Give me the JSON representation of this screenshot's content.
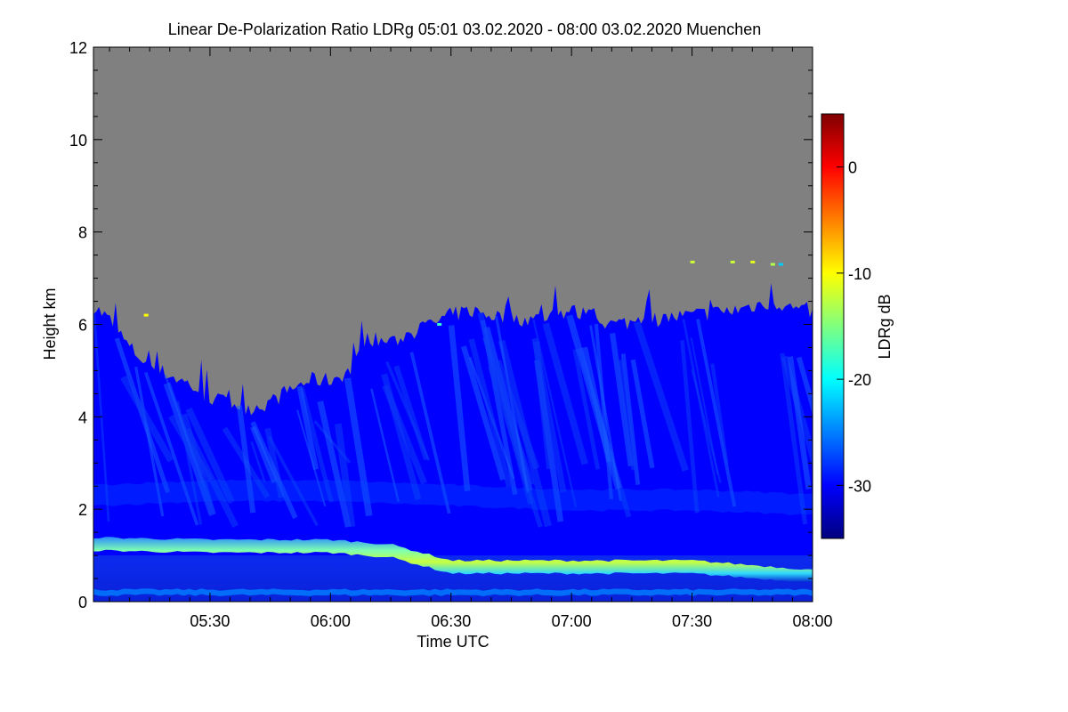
{
  "chart_data": {
    "type": "heatmap",
    "title": "Linear De-Polarization Ratio LDRg   05:01 03.02.2020 - 08:00 03.02.2020 Muenchen",
    "xlabel": "Time UTC",
    "ylabel": "Height km",
    "colorbar_label": "LDRg dB",
    "x_range": [
      "05:01",
      "08:00"
    ],
    "x_ticks": [
      "05:30",
      "06:00",
      "06:30",
      "07:00",
      "07:30",
      "08:00"
    ],
    "x_tick_minutes": [
      30,
      60,
      90,
      120,
      150,
      180
    ],
    "x_start_minutes": 1,
    "ylim": [
      0,
      12
    ],
    "y_ticks": [
      0,
      2,
      4,
      6,
      8,
      10,
      12
    ],
    "colorbar_range": [
      -35,
      5
    ],
    "colorbar_ticks": [
      0,
      -10,
      -20,
      -30
    ],
    "colormap": [
      "#00007f",
      "#0000ff",
      "#007fff",
      "#00ffff",
      "#7fff7f",
      "#ffff00",
      "#ff7f00",
      "#ff0000",
      "#7f0000"
    ],
    "no_signal_color": "#808080",
    "signal_top_profile": {
      "minutes": [
        1,
        5,
        10,
        15,
        20,
        25,
        30,
        35,
        40,
        45,
        50,
        55,
        60,
        65,
        70,
        75,
        80,
        85,
        90,
        95,
        100,
        110,
        120,
        130,
        140,
        150,
        160,
        170,
        180
      ],
      "height_km": [
        6.4,
        6.1,
        5.5,
        5.1,
        4.9,
        4.7,
        4.4,
        4.3,
        4.2,
        4.3,
        4.6,
        4.8,
        4.8,
        5.0,
        5.7,
        5.6,
        5.8,
        6.0,
        6.2,
        6.3,
        6.2,
        6.1,
        6.3,
        6.0,
        6.1,
        6.2,
        6.3,
        6.5,
        6.2
      ]
    },
    "layers": [
      {
        "minutes": [
          1,
          30,
          60,
          75,
          90,
          120,
          150,
          180
        ],
        "height_km": [
          1.25,
          1.2,
          1.2,
          1.1,
          0.75,
          0.75,
          0.75,
          0.55
        ],
        "ldr_db": -14
      },
      {
        "minutes": [
          1,
          180
        ],
        "height_km": [
          0.2,
          0.2
        ],
        "ldr_db": -25
      },
      {
        "minutes": [
          1,
          30,
          60,
          90,
          120,
          150,
          180
        ],
        "height_km": [
          2.3,
          2.4,
          2.4,
          2.3,
          2.2,
          2.2,
          2.1
        ],
        "ldr_db": -27
      }
    ],
    "isolated_points": [
      {
        "minute": 172,
        "height_km": 7.3,
        "ldr_db": -22
      },
      {
        "minute": 170,
        "height_km": 7.3,
        "ldr_db": -13
      },
      {
        "minute": 165,
        "height_km": 7.35,
        "ldr_db": -11
      },
      {
        "minute": 160,
        "height_km": 7.35,
        "ldr_db": -12
      },
      {
        "minute": 150,
        "height_km": 7.35,
        "ldr_db": -12
      },
      {
        "minute": 87,
        "height_km": 6.0,
        "ldr_db": -18
      },
      {
        "minute": 14,
        "height_km": 6.2,
        "ldr_db": -10
      }
    ]
  }
}
